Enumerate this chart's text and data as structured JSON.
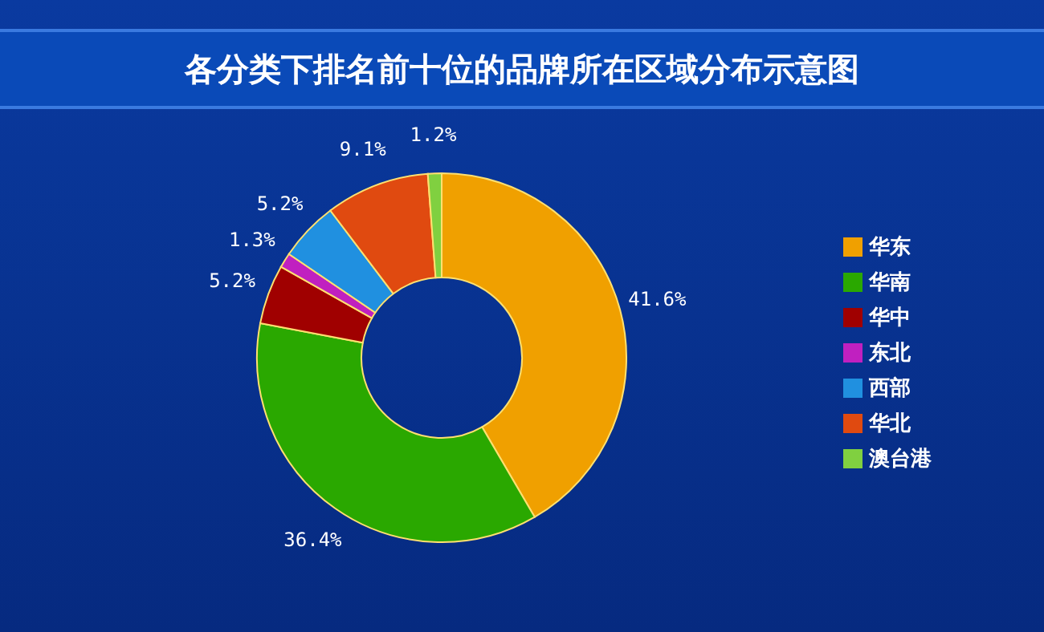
{
  "chart_data": {
    "type": "donut",
    "title": "各分类下排名前十位的品牌所在区域分布示意图",
    "categories": [
      "华东",
      "华南",
      "华中",
      "东北",
      "西部",
      "华北",
      "澳台港"
    ],
    "values": [
      41.6,
      36.4,
      5.2,
      1.3,
      5.2,
      9.1,
      1.2
    ],
    "value_labels": [
      "41.6%",
      "36.4%",
      "5.2%",
      "1.3%",
      "5.2%",
      "9.1%",
      "1.2%"
    ],
    "colors": [
      "#f0a000",
      "#2aa800",
      "#a00000",
      "#c020c0",
      "#2090e0",
      "#e04a10",
      "#80d040"
    ],
    "legend": "right"
  }
}
